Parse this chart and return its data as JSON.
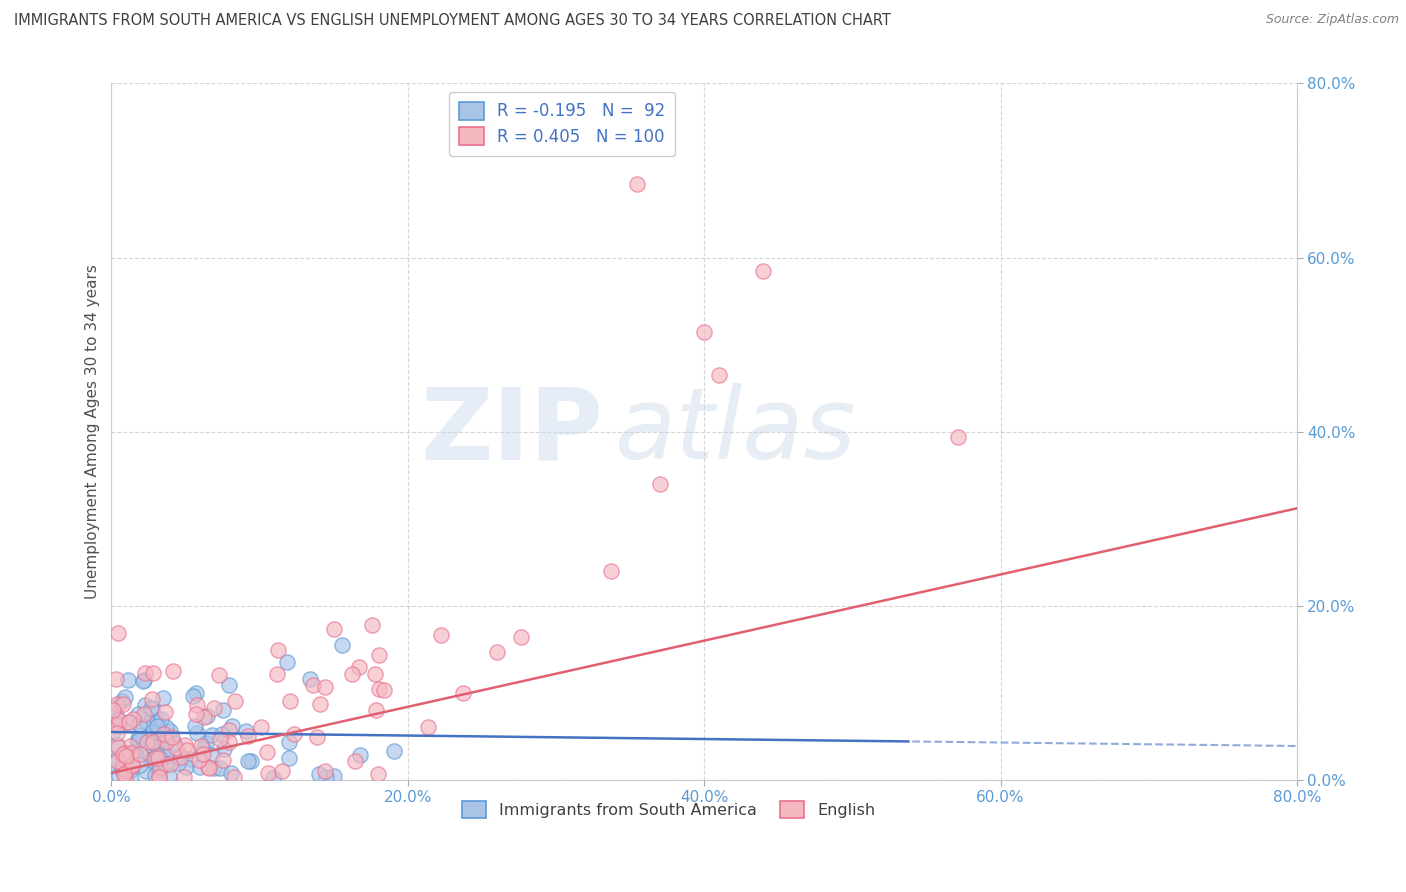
{
  "title": "IMMIGRANTS FROM SOUTH AMERICA VS ENGLISH UNEMPLOYMENT AMONG AGES 30 TO 34 YEARS CORRELATION CHART",
  "source": "Source: ZipAtlas.com",
  "ylabel": "Unemployment Among Ages 30 to 34 years",
  "xlim": [
    0.0,
    0.8
  ],
  "ylim": [
    0.0,
    0.8
  ],
  "xtick_labels": [
    "0.0%",
    "20.0%",
    "40.0%",
    "60.0%",
    "80.0%"
  ],
  "xtick_vals": [
    0.0,
    0.2,
    0.4,
    0.6,
    0.8
  ],
  "ytick_labels": [
    "80.0%",
    "60.0%",
    "40.0%",
    "20.0%",
    "0.0%"
  ],
  "ytick_vals_right": [
    0.8,
    0.6,
    0.4,
    0.2,
    0.0
  ],
  "legend_r_blue": "R = -0.195",
  "legend_n_blue": "N =  92",
  "legend_r_pink": "R = 0.405",
  "legend_n_pink": "N = 100",
  "watermark_zip": "ZIP",
  "watermark_atlas": "atlas",
  "blue_scatter_face": "#aac4e8",
  "blue_scatter_edge": "#5b9bd5",
  "pink_scatter_face": "#f4b8c1",
  "pink_scatter_edge": "#e87090",
  "blue_line_color": "#4472c4",
  "pink_line_color": "#e06070",
  "grid_color": "#cccccc",
  "background_color": "#ffffff",
  "title_color": "#404040",
  "source_color": "#808080",
  "axis_label_color": "#505050",
  "tick_color": "#5b9bd5",
  "R_blue": -0.195,
  "N_blue": 92,
  "R_pink": 0.405,
  "N_pink": 100,
  "blue_slope": -0.02,
  "blue_intercept": 0.055,
  "pink_slope": 0.38,
  "pink_intercept": 0.008
}
